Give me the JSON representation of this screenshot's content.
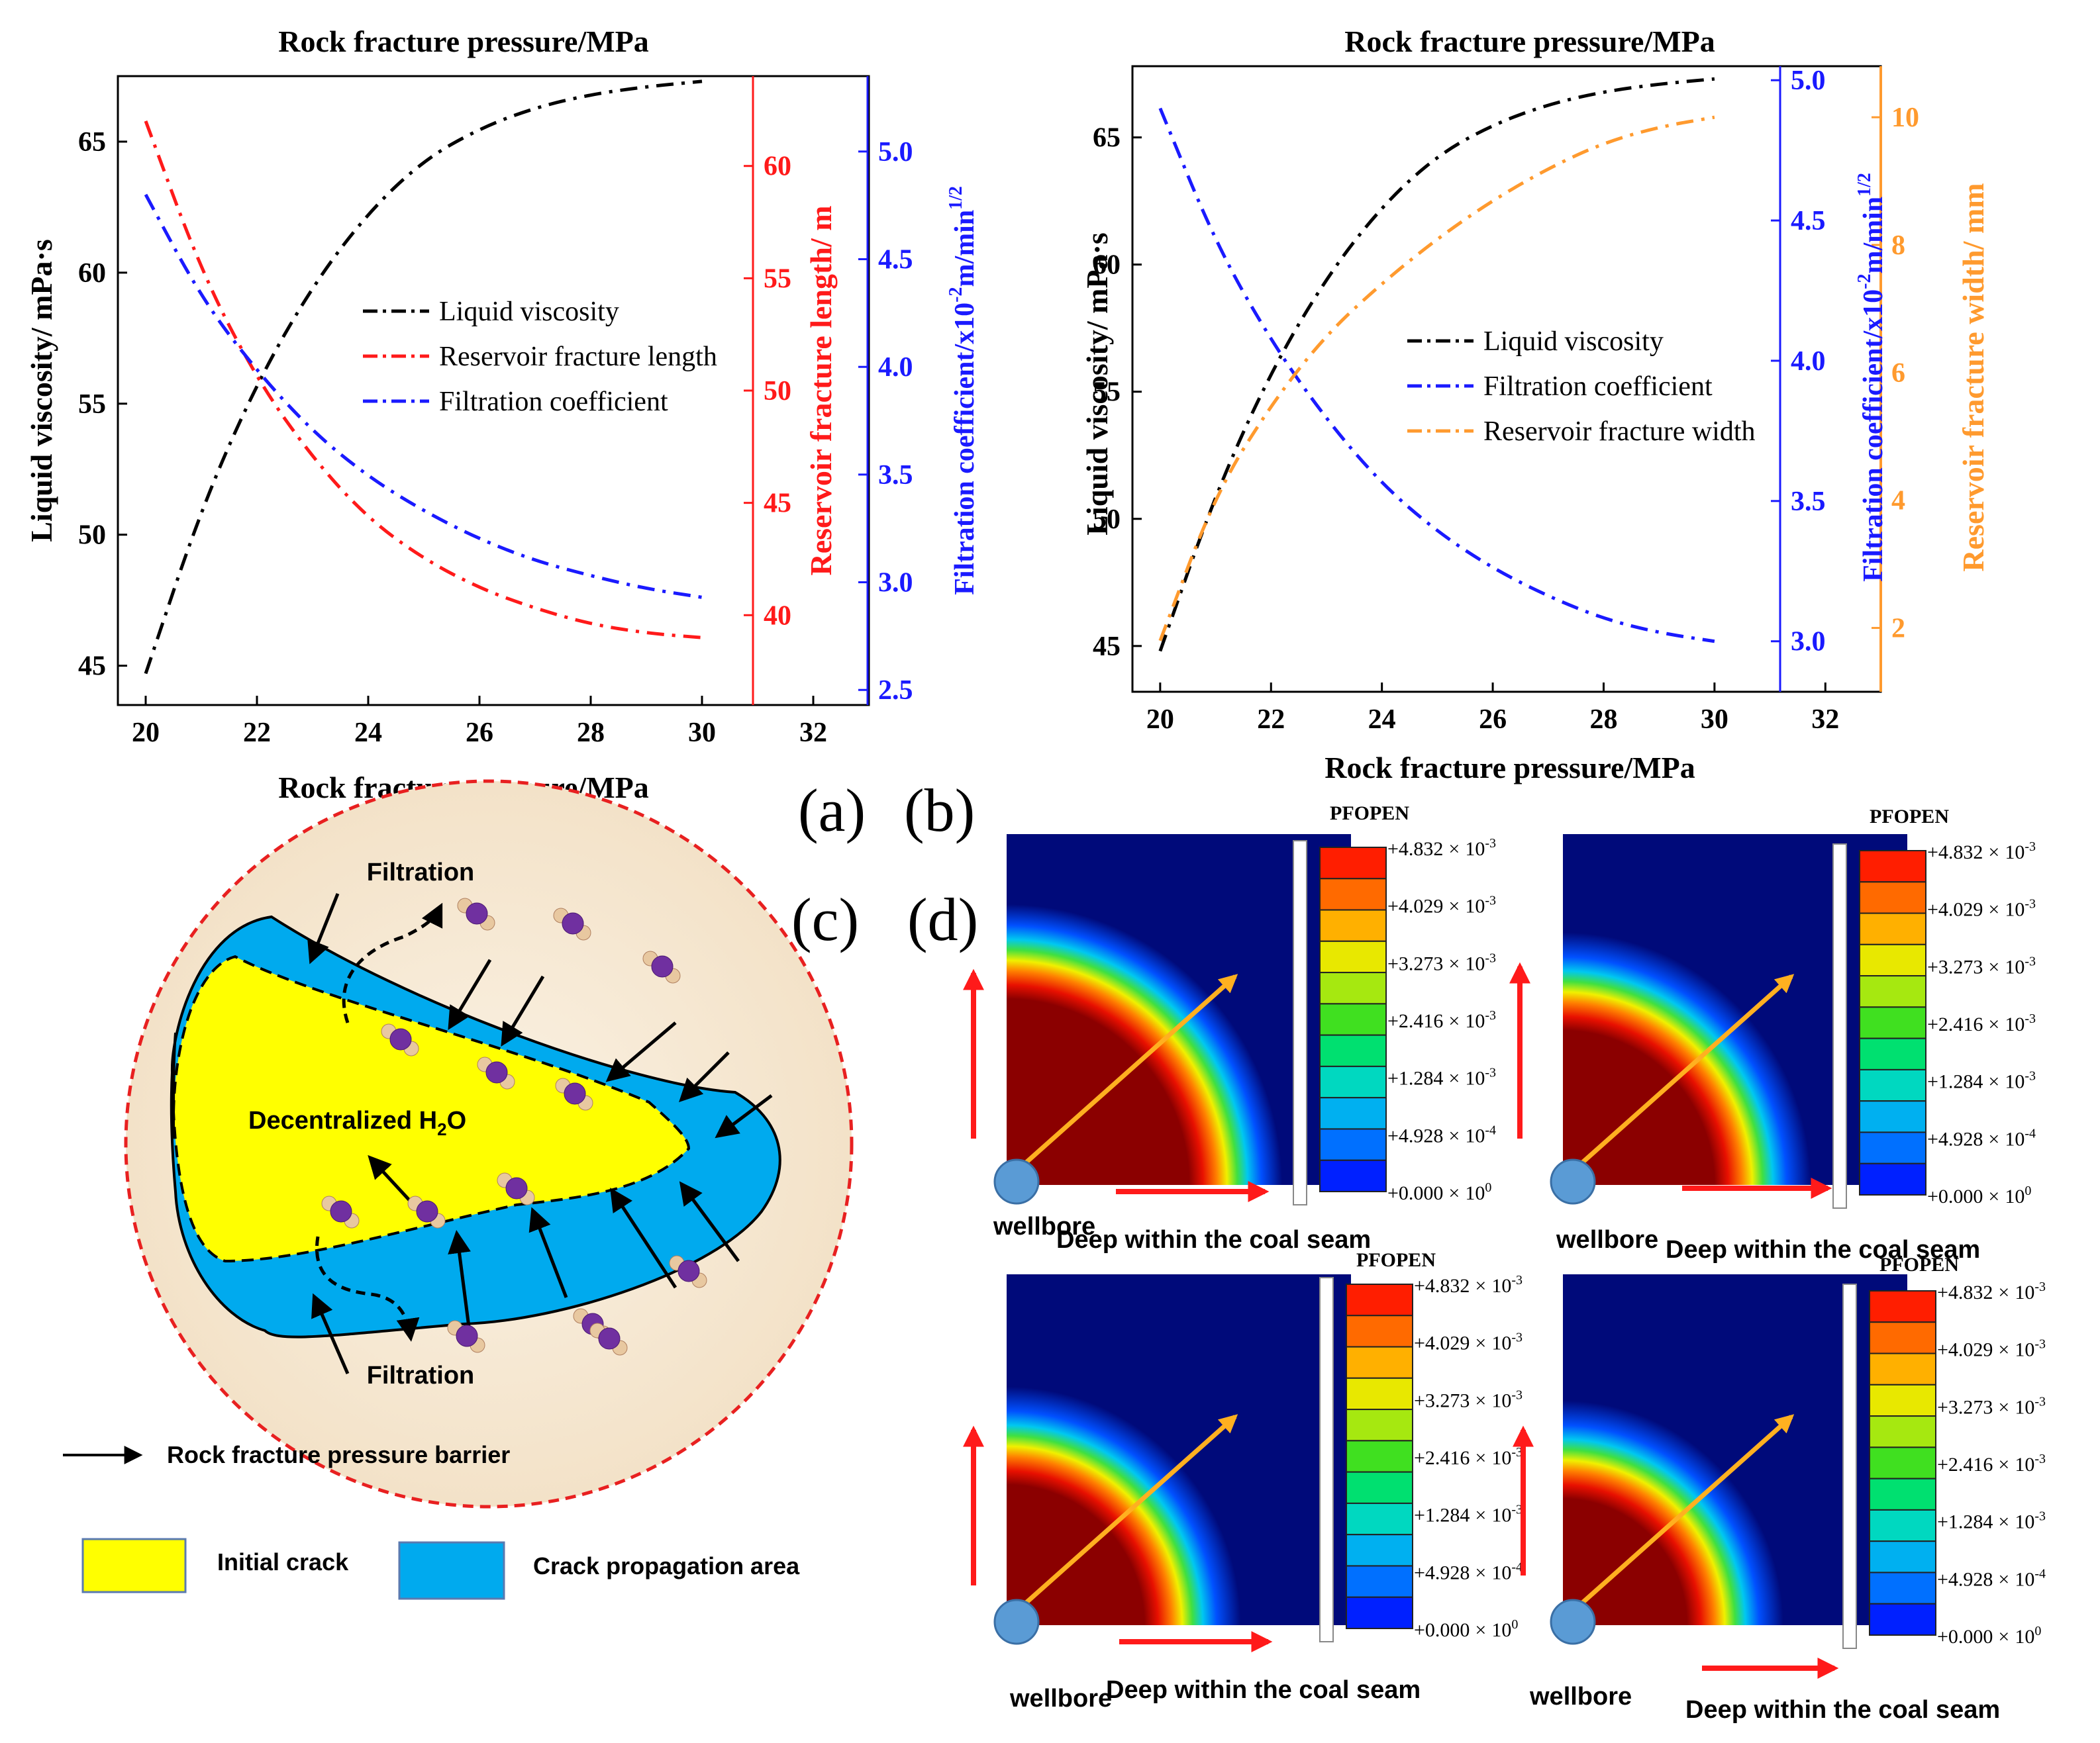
{
  "colors": {
    "black": "#000000",
    "red": "#ff1a1a",
    "blue": "#1a1aff",
    "orange": "#ff9a2e",
    "crack_yellow": "#ffff00",
    "crack_blue": "#00aaee",
    "bg_tan": "#faeedd",
    "arrow_orange": "#ffb020",
    "arrow_red": "#ff1a1a",
    "wellbore": "#5a9bd5",
    "field_bg": "#000a7a",
    "field_core": "#8b0000"
  },
  "panel_labels": {
    "a": "(a)",
    "b": "(b)",
    "c": "(c)",
    "d": "(d)"
  },
  "chart_data": [
    {
      "id": "a",
      "type": "line",
      "title": "Rock fracture pressure/MPa",
      "xlabel": "Rock fracture pressure/MPa",
      "xlim": [
        19.5,
        33
      ],
      "x_ticks": [
        20,
        22,
        24,
        26,
        28,
        30,
        32
      ],
      "y_left": {
        "label": "Liquid viscosity/ mPa·s",
        "lim": [
          43.5,
          67.5
        ],
        "ticks": [
          45,
          50,
          55,
          60,
          65
        ]
      },
      "y_right1": {
        "label": "Reservoir fracture length/ m",
        "lim": [
          36,
          64
        ],
        "ticks": [
          40,
          45,
          50,
          55,
          60
        ]
      },
      "y_right2": {
        "label": "Filtration coefficient/x10",
        "label_sup1": "-2",
        "label_mid": "m/min",
        "label_sup2": "1/2",
        "lim": [
          2.43,
          5.35
        ],
        "ticks": [
          "2.5",
          "3.0",
          "3.5",
          "4.0",
          "4.5",
          "5.0"
        ]
      },
      "legend": [
        "Liquid viscosity",
        "Reservoir fracture length",
        "Filtration coefficient"
      ],
      "series": [
        {
          "name": "Liquid viscosity",
          "axis": "left",
          "color": "#000000",
          "x": [
            20,
            21,
            22,
            23,
            24,
            25,
            26,
            27,
            28,
            29,
            30
          ],
          "values": [
            44.7,
            51.0,
            55.8,
            59.5,
            62.3,
            64.3,
            65.5,
            66.3,
            66.8,
            67.1,
            67.3
          ]
        },
        {
          "name": "Reservoir fracture length",
          "axis": "right1",
          "color": "#ff1a1a",
          "x": [
            20,
            21,
            22,
            23,
            24,
            25,
            26,
            27,
            28,
            29,
            30
          ],
          "values": [
            62.0,
            55.3,
            50.5,
            47.0,
            44.3,
            42.5,
            41.2,
            40.3,
            39.6,
            39.2,
            39.0
          ]
        },
        {
          "name": "Filtration coefficient",
          "axis": "right2",
          "color": "#1a1aff",
          "x": [
            20,
            21,
            22,
            23,
            24,
            25,
            26,
            27,
            28,
            29,
            30
          ],
          "values": [
            4.8,
            4.32,
            3.98,
            3.7,
            3.49,
            3.33,
            3.2,
            3.1,
            3.03,
            2.97,
            2.93
          ]
        }
      ]
    },
    {
      "id": "b",
      "type": "line",
      "title": "Rock fracture pressure/MPa",
      "xlabel": "Rock fracture pressure/MPa",
      "xlim": [
        19.5,
        33
      ],
      "x_ticks": [
        20,
        22,
        24,
        26,
        28,
        30,
        32
      ],
      "y_left": {
        "label": "Liquid viscosity/ mPa·s",
        "lim": [
          43.2,
          67.8
        ],
        "ticks": [
          45,
          50,
          55,
          60,
          65
        ]
      },
      "y_right1": {
        "label": "Filtration coefficient/x10",
        "label_sup1": "-2",
        "label_mid": "m/min",
        "label_sup2": "1/2",
        "lim": [
          2.82,
          5.05
        ],
        "ticks": [
          "3.0",
          "3.5",
          "4.0",
          "4.5",
          "5.0"
        ]
      },
      "y_right2": {
        "label": "Reservoir fracture width/ mm",
        "lim": [
          1,
          10.8
        ],
        "ticks": [
          2,
          4,
          6,
          8,
          10
        ]
      },
      "legend": [
        "Liquid viscosity",
        "Filtration coefficient",
        "Reservoir fracture width"
      ],
      "series": [
        {
          "name": "Liquid viscosity",
          "axis": "left",
          "color": "#000000",
          "x": [
            20,
            21,
            22,
            23,
            24,
            25,
            26,
            27,
            28,
            29,
            30
          ],
          "values": [
            44.8,
            51.0,
            55.8,
            59.5,
            62.3,
            64.3,
            65.5,
            66.3,
            66.8,
            67.1,
            67.3
          ]
        },
        {
          "name": "Filtration coefficient",
          "axis": "right1",
          "color": "#1a1aff",
          "x": [
            20,
            21,
            22,
            23,
            24,
            25,
            26,
            27,
            28,
            29,
            30
          ],
          "values": [
            4.9,
            4.42,
            4.07,
            3.79,
            3.56,
            3.39,
            3.26,
            3.16,
            3.08,
            3.03,
            3.0
          ]
        },
        {
          "name": "Reservoir fracture width",
          "axis": "right2",
          "color": "#ff9a2e",
          "x": [
            20,
            21,
            22,
            23,
            24,
            25,
            26,
            27,
            28,
            29,
            30
          ],
          "values": [
            1.8,
            4.1,
            5.5,
            6.6,
            7.4,
            8.1,
            8.7,
            9.2,
            9.6,
            9.85,
            10.0
          ]
        }
      ]
    }
  ],
  "schematic": {
    "filtration_top": "Filtration",
    "filtration_bottom": "Filtration",
    "h2o_prefix": "Decentralized H",
    "h2o_sub": "2",
    "h2o_suffix": "O",
    "legend_arrow": "Rock fracture pressure barrier",
    "legend_initial": "Initial crack",
    "legend_propagation": "Crack propagation area"
  },
  "contours": {
    "title": "PFOPEN",
    "scale": [
      "+4.832",
      "+4.029",
      "+3.273",
      "+2.416",
      "+1.284",
      "+4.928",
      "+0.000"
    ],
    "scale_times": "×",
    "scale_base": "10",
    "scale_exp": [
      "-3",
      "-3",
      "-3",
      "-3",
      "-3",
      "-4",
      "0"
    ],
    "scale_colors": [
      "#ff1e00",
      "#ff6a00",
      "#ffb000",
      "#e8e800",
      "#a6e810",
      "#40e020",
      "#00e070",
      "#00d8c0",
      "#00b0f0",
      "#0070ff",
      "#0020ff"
    ],
    "wellbore": "wellbore",
    "deep": "Deep within the coal seam"
  }
}
